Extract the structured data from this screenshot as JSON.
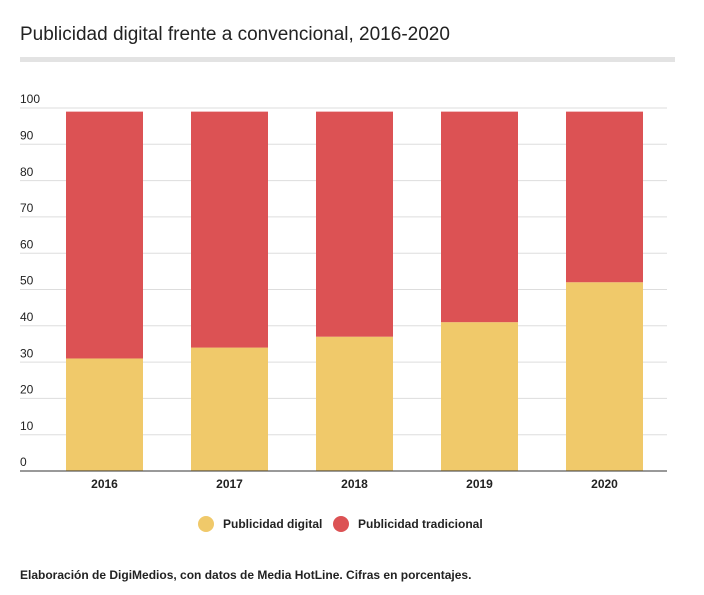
{
  "chart_data": {
    "type": "stacked_bar",
    "title": "Publicidad digital frente a convencional, 2016-2020",
    "categories": [
      "2016",
      "2017",
      "2018",
      "2019",
      "2020"
    ],
    "series": [
      {
        "name": "Publicidad digital",
        "color": "#f0c96a",
        "values": [
          31,
          34,
          37,
          41,
          52
        ]
      },
      {
        "name": "Publicidad tradicional",
        "color": "#dc5254",
        "values": [
          68,
          65,
          62,
          58,
          47
        ]
      }
    ],
    "ylim": [
      0,
      100
    ],
    "yticks": [
      0,
      10,
      20,
      30,
      40,
      50,
      60,
      70,
      80,
      90,
      100
    ],
    "grid": true,
    "source": [
      "Elaboración de ",
      "DigiMedios",
      ", con datos de Media HotLine. Cifras en porcentajes."
    ]
  }
}
